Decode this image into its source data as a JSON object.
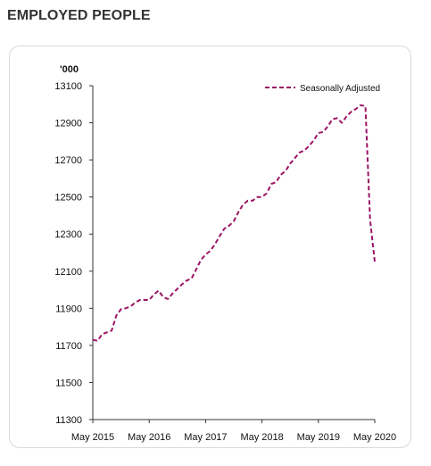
{
  "page": {
    "title": "EMPLOYED PEOPLE"
  },
  "colors": {
    "series": "#9c1464",
    "axis": "#333333",
    "card_border": "#d9d9d9"
  },
  "chart_data": {
    "type": "line",
    "title": "EMPLOYED PEOPLE",
    "unit_label": "'000",
    "xlabel": "",
    "ylabel": "",
    "ylim": [
      11300,
      13100
    ],
    "yticks": [
      11300,
      11500,
      11700,
      11900,
      12100,
      12300,
      12500,
      12700,
      12900,
      13100
    ],
    "x_tick_labels": [
      "May 2015",
      "May 2016",
      "May 2017",
      "May 2018",
      "May 2019",
      "May 2020"
    ],
    "grid": false,
    "legend_position": "top-right",
    "series": [
      {
        "name": "Seasonally Adjusted",
        "line_style": "dashed",
        "x": [
          "2015-05",
          "2015-06",
          "2015-07",
          "2015-08",
          "2015-09",
          "2015-10",
          "2015-11",
          "2015-12",
          "2016-01",
          "2016-02",
          "2016-03",
          "2016-04",
          "2016-05",
          "2016-06",
          "2016-07",
          "2016-08",
          "2016-09",
          "2016-10",
          "2016-11",
          "2016-12",
          "2017-01",
          "2017-02",
          "2017-03",
          "2017-04",
          "2017-05",
          "2017-06",
          "2017-07",
          "2017-08",
          "2017-09",
          "2017-10",
          "2017-11",
          "2017-12",
          "2018-01",
          "2018-02",
          "2018-03",
          "2018-04",
          "2018-05",
          "2018-06",
          "2018-07",
          "2018-08",
          "2018-09",
          "2018-10",
          "2018-11",
          "2018-12",
          "2019-01",
          "2019-02",
          "2019-03",
          "2019-04",
          "2019-05",
          "2019-06",
          "2019-07",
          "2019-08",
          "2019-09",
          "2019-10",
          "2019-11",
          "2019-12",
          "2020-01",
          "2020-02",
          "2020-03",
          "2020-04",
          "2020-05"
        ],
        "values": [
          11730,
          11725,
          11760,
          11770,
          11780,
          11860,
          11895,
          11900,
          11910,
          11930,
          11945,
          11945,
          11945,
          11975,
          11995,
          11960,
          11950,
          11980,
          12005,
          12030,
          12050,
          12060,
          12110,
          12160,
          12190,
          12210,
          12245,
          12290,
          12330,
          12345,
          12370,
          12420,
          12460,
          12480,
          12480,
          12500,
          12500,
          12520,
          12570,
          12580,
          12620,
          12640,
          12680,
          12710,
          12740,
          12750,
          12775,
          12805,
          12845,
          12850,
          12880,
          12920,
          12925,
          12900,
          12935,
          12960,
          12975,
          12995,
          12990,
          12380,
          12150
        ]
      }
    ]
  }
}
